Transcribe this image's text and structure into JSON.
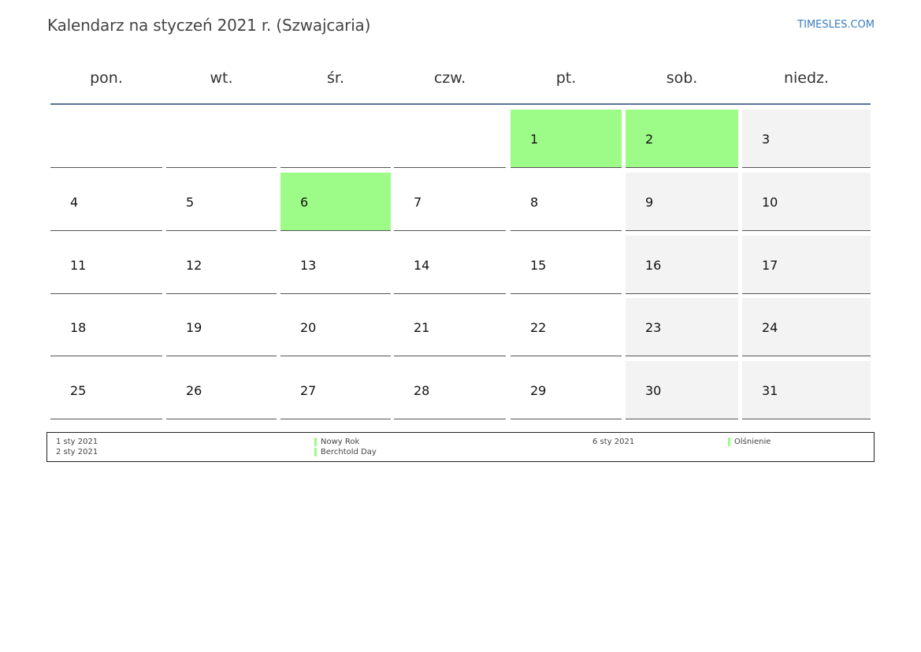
{
  "title": "Kalendarz na styczeń 2021 r. (Szwajcaria)",
  "brand": "TIMESLES.COM",
  "colors": {
    "holiday": "#9dfc87",
    "weekend": "#f3f3f3",
    "header_rule": "#5a7399",
    "brand": "#3a7bbf"
  },
  "weekdays": [
    "pon.",
    "wt.",
    "śr.",
    "czw.",
    "pt.",
    "sob.",
    "niedz."
  ],
  "weeks": [
    [
      null,
      null,
      null,
      null,
      {
        "day": "1",
        "holiday": true
      },
      {
        "day": "2",
        "holiday": true
      },
      {
        "day": "3"
      }
    ],
    [
      {
        "day": "4"
      },
      {
        "day": "5"
      },
      {
        "day": "6",
        "holiday": true
      },
      {
        "day": "7"
      },
      {
        "day": "8"
      },
      {
        "day": "9"
      },
      {
        "day": "10"
      }
    ],
    [
      {
        "day": "11"
      },
      {
        "day": "12"
      },
      {
        "day": "13"
      },
      {
        "day": "14"
      },
      {
        "day": "15"
      },
      {
        "day": "16"
      },
      {
        "day": "17"
      }
    ],
    [
      {
        "day": "18"
      },
      {
        "day": "19"
      },
      {
        "day": "20"
      },
      {
        "day": "21"
      },
      {
        "day": "22"
      },
      {
        "day": "23"
      },
      {
        "day": "24"
      }
    ],
    [
      {
        "day": "25"
      },
      {
        "day": "26"
      },
      {
        "day": "27"
      },
      {
        "day": "28"
      },
      {
        "day": "29"
      },
      {
        "day": "30"
      },
      {
        "day": "31"
      }
    ]
  ],
  "holidays": [
    {
      "date": "1 sty 2021",
      "name": "Nowy Rok"
    },
    {
      "date": "2 sty 2021",
      "name": "Berchtold Day"
    },
    {
      "date": "6 sty 2021",
      "name": "Olśnienie"
    }
  ]
}
